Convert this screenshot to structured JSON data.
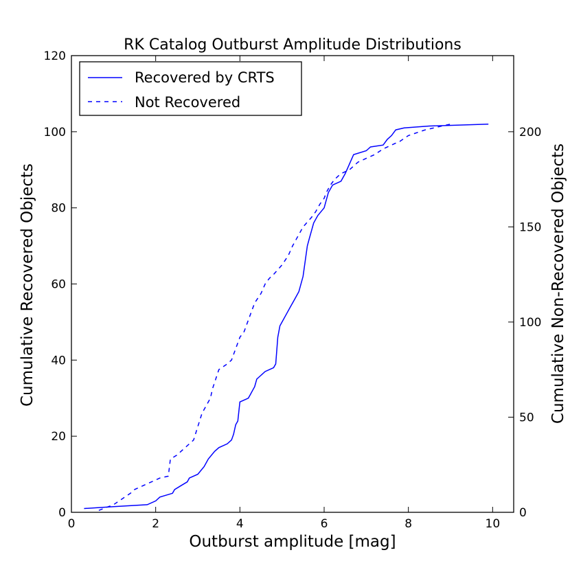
{
  "chart_data": {
    "type": "line",
    "title": "RK Catalog Outburst Amplitude Distributions",
    "xlabel": "Outburst amplitude [mag]",
    "ylabel": "Cumulative Recovered Objects",
    "ylabel_right": "Cumulative Non-Recovered Objects",
    "xlim": [
      0,
      10.5
    ],
    "ylim": [
      0,
      120
    ],
    "ylim_right": [
      0,
      240
    ],
    "x_ticks": [
      0,
      2,
      4,
      6,
      8,
      10
    ],
    "y_ticks": [
      0,
      20,
      40,
      60,
      80,
      100,
      120
    ],
    "y_ticks_right": [
      0,
      50,
      100,
      150,
      200
    ],
    "legend_position": "top-left",
    "series": [
      {
        "name": "Recovered by CRTS",
        "axis": "left",
        "style": "solid",
        "color": "#0000ff",
        "x": [
          0.3,
          1.0,
          1.8,
          2.0,
          2.1,
          2.4,
          2.45,
          2.6,
          2.75,
          2.8,
          3.0,
          3.15,
          3.25,
          3.4,
          3.5,
          3.7,
          3.8,
          3.85,
          3.9,
          3.95,
          4.0,
          4.2,
          4.25,
          4.3,
          4.35,
          4.4,
          4.5,
          4.6,
          4.8,
          4.85,
          4.9,
          4.95,
          5.0,
          5.1,
          5.2,
          5.3,
          5.4,
          5.5,
          5.55,
          5.6,
          5.65,
          5.7,
          5.75,
          5.8,
          5.85,
          6.0,
          6.1,
          6.2,
          6.4,
          6.5,
          6.7,
          7.0,
          7.1,
          7.4,
          7.5,
          7.6,
          7.7,
          7.9,
          8.5,
          9.9
        ],
        "y": [
          1,
          1.5,
          2,
          3,
          4,
          5,
          6,
          7,
          8,
          9,
          10,
          12,
          14,
          16,
          17,
          18,
          19,
          20.5,
          23,
          24,
          29,
          30,
          31,
          32,
          33,
          35,
          36,
          37,
          38,
          39,
          46,
          49,
          50,
          52,
          54,
          56,
          58,
          62,
          66,
          70,
          72,
          74,
          76,
          77,
          78,
          80,
          84,
          86,
          87,
          89,
          94,
          95,
          96,
          96.5,
          98,
          99,
          100.5,
          101,
          101.5,
          102
        ]
      },
      {
        "name": "Not Recovered",
        "axis": "right",
        "style": "dashed",
        "color": "#0000ff",
        "x": [
          0.65,
          1.0,
          1.2,
          1.4,
          1.5,
          1.6,
          1.8,
          1.9,
          2.0,
          2.1,
          2.3,
          2.35,
          2.5,
          2.6,
          2.75,
          2.9,
          3.0,
          3.1,
          3.3,
          3.35,
          3.5,
          3.7,
          3.8,
          3.9,
          4.0,
          4.1,
          4.2,
          4.35,
          4.5,
          4.6,
          4.7,
          4.8,
          5.0,
          5.15,
          5.25,
          5.4,
          5.5,
          5.7,
          5.8,
          5.9,
          6.0,
          6.05,
          6.15,
          6.25,
          6.4,
          6.6,
          6.8,
          7.0,
          7.2,
          7.4,
          7.6,
          7.8,
          8.0,
          8.4,
          8.8,
          9.0
        ],
        "y": [
          1,
          4,
          7,
          10,
          12,
          13,
          15,
          16,
          17,
          18,
          19,
          28,
          30,
          32,
          35,
          38,
          45,
          52,
          60,
          65,
          75,
          78,
          80,
          86,
          92,
          95,
          101,
          110,
          115,
          120,
          123,
          125,
          130,
          135,
          140,
          146,
          150,
          155,
          158,
          162,
          165,
          168,
          172,
          175,
          178,
          180,
          184,
          186,
          188,
          191,
          193,
          195,
          198,
          201,
          203,
          204
        ]
      }
    ]
  }
}
